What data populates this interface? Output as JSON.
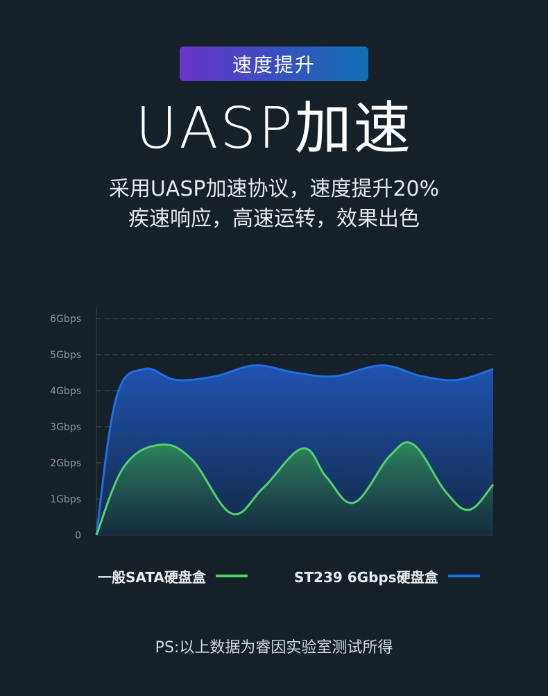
{
  "header": {
    "badge": "速度提升",
    "title": "UASP加速",
    "subtitle_line1": "采用UASP加速协议，速度提升20%",
    "subtitle_line2": "疾速响应，高速运转，效果出色"
  },
  "colors": {
    "background": "#152029",
    "badge_start": "#6a35c9",
    "badge_end": "#1170b3",
    "series_green": "#4fd36b",
    "series_blue": "#1e6fe6"
  },
  "chart_data": {
    "type": "area",
    "ylabel": "",
    "xlabel": "",
    "y_ticks": [
      "0",
      "1Gbps",
      "2Gbps",
      "3Gbps",
      "4Gbps",
      "5Gbps",
      "6Gbps"
    ],
    "ylim": [
      0,
      6
    ],
    "xlim": [
      0,
      1
    ],
    "grid": true,
    "legend_position": "bottom",
    "series": [
      {
        "name": "ST239 6Gbps硬盘盒",
        "color": "#1e6fe6",
        "points": [
          [
            0,
            0
          ],
          [
            0.05,
            3.8
          ],
          [
            0.12,
            4.6
          ],
          [
            0.2,
            4.3
          ],
          [
            0.3,
            4.4
          ],
          [
            0.4,
            4.7
          ],
          [
            0.5,
            4.5
          ],
          [
            0.6,
            4.4
          ],
          [
            0.72,
            4.7
          ],
          [
            0.82,
            4.4
          ],
          [
            0.91,
            4.3
          ],
          [
            1.0,
            4.6
          ]
        ]
      },
      {
        "name": "一般SATA硬盘盒",
        "color": "#4fd36b",
        "points": [
          [
            0,
            0
          ],
          [
            0.07,
            1.9
          ],
          [
            0.16,
            2.5
          ],
          [
            0.24,
            2.1
          ],
          [
            0.34,
            0.6
          ],
          [
            0.42,
            1.3
          ],
          [
            0.52,
            2.4
          ],
          [
            0.58,
            1.6
          ],
          [
            0.65,
            0.9
          ],
          [
            0.74,
            2.2
          ],
          [
            0.8,
            2.5
          ],
          [
            0.88,
            1.2
          ],
          [
            0.94,
            0.7
          ],
          [
            1.0,
            1.4
          ]
        ]
      }
    ]
  },
  "legend": {
    "item1": "一般SATA硬盘盒",
    "item2": "ST239 6Gbps硬盘盒"
  },
  "footnote": "PS:以上数据为睿因实验室测试所得"
}
